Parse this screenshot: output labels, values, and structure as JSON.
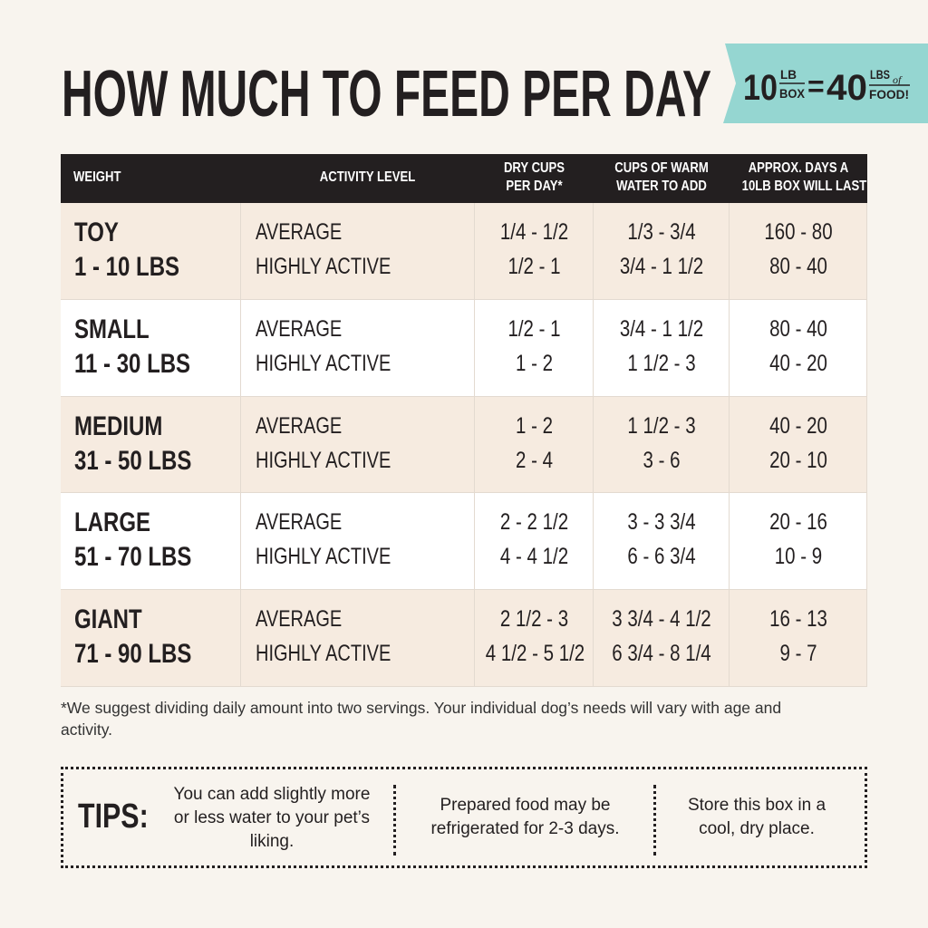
{
  "header": {
    "title": "HOW MUCH TO FEED PER DAY",
    "badge": {
      "box_number": "10",
      "box_unit_top": "LB",
      "box_unit_bottom": "BOX",
      "equals": "=",
      "food_number": "40",
      "food_unit_top": "LBS",
      "food_of": "of",
      "food_unit_bottom": "FOOD!"
    }
  },
  "table": {
    "columns": [
      [
        "WEIGHT"
      ],
      [
        "ACTIVITY LEVEL"
      ],
      [
        "DRY CUPS",
        "PER DAY*"
      ],
      [
        "CUPS OF WARM",
        "WATER TO ADD"
      ],
      [
        "APPROX. DAYS A",
        "10LB BOX WILL LAST"
      ]
    ],
    "rows": [
      {
        "size": "TOY",
        "range": "1 - 10 LBS",
        "levels": [
          "AVERAGE",
          "HIGHLY ACTIVE"
        ],
        "dry": [
          "1/4 - 1/2",
          "1/2 - 1"
        ],
        "water": [
          "1/3 - 3/4",
          "3/4 - 1 1/2"
        ],
        "days": [
          "160 - 80",
          "80 - 40"
        ]
      },
      {
        "size": "SMALL",
        "range": "11 - 30 LBS",
        "levels": [
          "AVERAGE",
          "HIGHLY ACTIVE"
        ],
        "dry": [
          "1/2 - 1",
          "1 - 2"
        ],
        "water": [
          "3/4 - 1 1/2",
          "1 1/2 - 3"
        ],
        "days": [
          "80 - 40",
          "40 - 20"
        ]
      },
      {
        "size": "MEDIUM",
        "range": "31 - 50 LBS",
        "levels": [
          "AVERAGE",
          "HIGHLY ACTIVE"
        ],
        "dry": [
          "1 - 2",
          "2 - 4"
        ],
        "water": [
          "1 1/2 - 3",
          "3 - 6"
        ],
        "days": [
          "40 - 20",
          "20 - 10"
        ]
      },
      {
        "size": "LARGE",
        "range": "51 - 70 LBS",
        "levels": [
          "AVERAGE",
          "HIGHLY ACTIVE"
        ],
        "dry": [
          "2 - 2 1/2",
          "4 - 4 1/2"
        ],
        "water": [
          "3 - 3 3/4",
          "6 - 6 3/4"
        ],
        "days": [
          "20 - 16",
          "10 - 9"
        ]
      },
      {
        "size": "GIANT",
        "range": "71 - 90 LBS",
        "levels": [
          "AVERAGE",
          "HIGHLY ACTIVE"
        ],
        "dry": [
          "2 1/2 - 3",
          "4 1/2 - 5 1/2"
        ],
        "water": [
          "3 3/4 - 4 1/2",
          "6 3/4 - 8 1/4"
        ],
        "days": [
          "16 - 13",
          "9 - 7"
        ]
      }
    ]
  },
  "footnote": "*We suggest dividing daily amount into two servings. Your individual dog’s needs will vary with age and activity.",
  "tips": {
    "label": "TIPS:",
    "items": [
      "You can add slightly more or less water to your pet’s liking.",
      "Prepared food may be refrigerated for 2-3 days.",
      "Store this box in a cool, dry place."
    ]
  }
}
